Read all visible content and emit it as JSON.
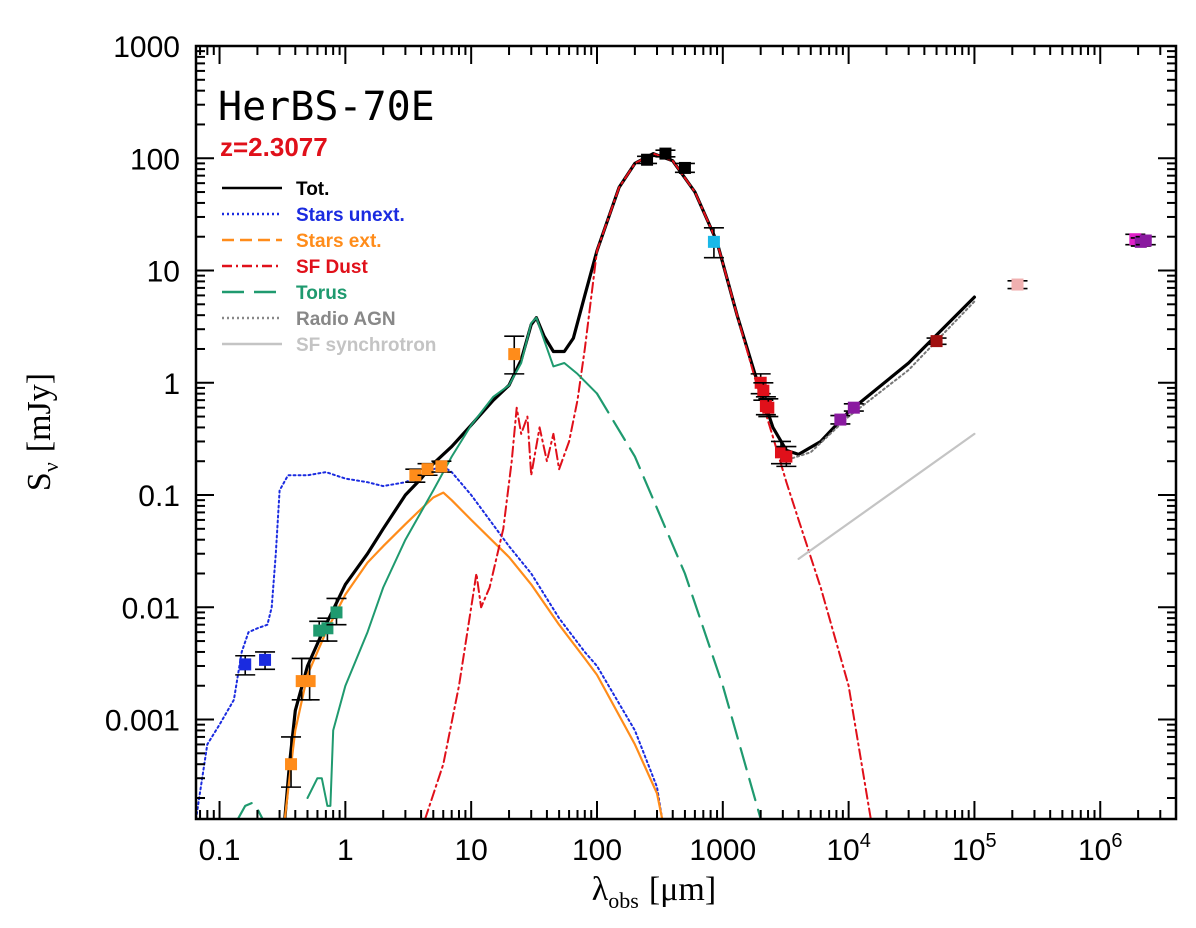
{
  "chart_data": {
    "type": "line",
    "title": "HerBS-70E",
    "subtitle": "z=2.3077",
    "xlabel": "λ",
    "xlabel_sub": "obs",
    "xlabel_unit": "[μm]",
    "ylabel": "S",
    "ylabel_sub": "ν",
    "ylabel_unit": "[mJy]",
    "xscale": "log",
    "yscale": "log",
    "xlim": [
      0.065,
      4000000
    ],
    "ylim": [
      0.00013,
      1000
    ],
    "x_ticks": [
      {
        "v": 0.1,
        "label": "0.1"
      },
      {
        "v": 1,
        "label": "1"
      },
      {
        "v": 10,
        "label": "10"
      },
      {
        "v": 100,
        "label": "100"
      },
      {
        "v": 1000,
        "label": "1000"
      },
      {
        "v": 10000,
        "label": "10",
        "sup": "4"
      },
      {
        "v": 100000,
        "label": "10",
        "sup": "5"
      },
      {
        "v": 1000000,
        "label": "10",
        "sup": "6"
      }
    ],
    "y_ticks": [
      {
        "v": 0.001,
        "label": "0.001"
      },
      {
        "v": 0.01,
        "label": "0.01"
      },
      {
        "v": 0.1,
        "label": "0.1"
      },
      {
        "v": 1,
        "label": "1"
      },
      {
        "v": 10,
        "label": "10"
      },
      {
        "v": 100,
        "label": "100"
      },
      {
        "v": 1000,
        "label": "1000"
      }
    ],
    "legend_position": "top-left",
    "series": [
      {
        "name": "Tot.",
        "color": "#000000",
        "dash": "",
        "width": 3.2,
        "points": [
          [
            0.33,
            0.00013
          ],
          [
            0.36,
            0.0004
          ],
          [
            0.4,
            0.0012
          ],
          [
            0.5,
            0.003
          ],
          [
            0.7,
            0.007
          ],
          [
            1,
            0.016
          ],
          [
            1.5,
            0.03
          ],
          [
            2,
            0.05
          ],
          [
            3,
            0.1
          ],
          [
            4,
            0.14
          ],
          [
            5,
            0.19
          ],
          [
            7,
            0.27
          ],
          [
            10,
            0.42
          ],
          [
            15,
            0.7
          ],
          [
            20,
            0.95
          ],
          [
            25,
            1.6
          ],
          [
            30,
            3.3
          ],
          [
            33,
            3.8
          ],
          [
            38,
            2.6
          ],
          [
            45,
            1.9
          ],
          [
            55,
            1.9
          ],
          [
            65,
            2.5
          ],
          [
            80,
            6
          ],
          [
            100,
            15
          ],
          [
            150,
            55
          ],
          [
            200,
            90
          ],
          [
            280,
            110
          ],
          [
            400,
            95
          ],
          [
            600,
            50
          ],
          [
            900,
            18
          ],
          [
            1300,
            4
          ],
          [
            1800,
            1.2
          ],
          [
            2500,
            0.4
          ],
          [
            3200,
            0.25
          ],
          [
            4000,
            0.23
          ],
          [
            6000,
            0.3
          ],
          [
            10000,
            0.55
          ],
          [
            30000,
            1.5
          ],
          [
            100000,
            5.8
          ]
        ]
      },
      {
        "name": "Stars unext.",
        "color": "#1a2be0",
        "dash": "2,3",
        "width": 2,
        "points": [
          [
            0.065,
            0.00013
          ],
          [
            0.08,
            0.0006
          ],
          [
            0.1,
            0.0009
          ],
          [
            0.13,
            0.0015
          ],
          [
            0.15,
            0.004
          ],
          [
            0.17,
            0.006
          ],
          [
            0.2,
            0.0065
          ],
          [
            0.24,
            0.007
          ],
          [
            0.26,
            0.01
          ],
          [
            0.28,
            0.03
          ],
          [
            0.3,
            0.11
          ],
          [
            0.35,
            0.15
          ],
          [
            0.5,
            0.15
          ],
          [
            0.7,
            0.16
          ],
          [
            1,
            0.14
          ],
          [
            1.5,
            0.13
          ],
          [
            2,
            0.12
          ],
          [
            3,
            0.13
          ],
          [
            4,
            0.15
          ],
          [
            5,
            0.17
          ],
          [
            6,
            0.18
          ],
          [
            7,
            0.16
          ],
          [
            10,
            0.1
          ],
          [
            20,
            0.035
          ],
          [
            30,
            0.02
          ],
          [
            50,
            0.008
          ],
          [
            80,
            0.004
          ],
          [
            100,
            0.003
          ],
          [
            200,
            0.0008
          ],
          [
            300,
            0.00025
          ],
          [
            330,
            0.00013
          ]
        ]
      },
      {
        "name": "Stars ext.",
        "color": "#ff8c1a",
        "dash": "",
        "width": 2.2,
        "points": [
          [
            0.33,
            0.00013
          ],
          [
            0.36,
            0.0003
          ],
          [
            0.4,
            0.0008
          ],
          [
            0.5,
            0.0025
          ],
          [
            0.7,
            0.006
          ],
          [
            1,
            0.013
          ],
          [
            1.5,
            0.025
          ],
          [
            2,
            0.035
          ],
          [
            3,
            0.055
          ],
          [
            4,
            0.075
          ],
          [
            5,
            0.095
          ],
          [
            6,
            0.105
          ],
          [
            7,
            0.09
          ],
          [
            10,
            0.06
          ],
          [
            20,
            0.028
          ],
          [
            30,
            0.016
          ],
          [
            50,
            0.007
          ],
          [
            80,
            0.0035
          ],
          [
            100,
            0.0025
          ],
          [
            200,
            0.0006
          ],
          [
            300,
            0.00022
          ],
          [
            330,
            0.00013
          ]
        ]
      },
      {
        "name": "SF Dust",
        "color": "#e0101a",
        "dash": "10,4,2,4",
        "width": 2,
        "points": [
          [
            4.3,
            0.00013
          ],
          [
            6,
            0.0004
          ],
          [
            8,
            0.002
          ],
          [
            10,
            0.01
          ],
          [
            11,
            0.02
          ],
          [
            12,
            0.01
          ],
          [
            14,
            0.015
          ],
          [
            18,
            0.05
          ],
          [
            21,
            0.2
          ],
          [
            23,
            0.6
          ],
          [
            25,
            0.35
          ],
          [
            28,
            0.5
          ],
          [
            30,
            0.15
          ],
          [
            35,
            0.4
          ],
          [
            40,
            0.2
          ],
          [
            45,
            0.35
          ],
          [
            50,
            0.17
          ],
          [
            60,
            0.3
          ],
          [
            70,
            0.7
          ],
          [
            80,
            2
          ],
          [
            100,
            15
          ],
          [
            150,
            55
          ],
          [
            200,
            90
          ],
          [
            280,
            110
          ],
          [
            400,
            95
          ],
          [
            600,
            50
          ],
          [
            900,
            18
          ],
          [
            1300,
            4
          ],
          [
            1800,
            1.1
          ],
          [
            2500,
            0.33
          ],
          [
            3200,
            0.13
          ],
          [
            4000,
            0.06
          ],
          [
            6000,
            0.015
          ],
          [
            10000,
            0.002
          ],
          [
            15000,
            0.00013
          ]
        ]
      },
      {
        "name": "Torus",
        "color": "#1f9a6f",
        "dash": "22,10",
        "width": 2.2,
        "points": [
          [
            0.14,
            0.00013
          ],
          [
            0.16,
            0.00017
          ],
          [
            0.18,
            0.00018
          ],
          [
            0.2,
            0.00016
          ],
          [
            0.22,
            0.00013
          ]
        ]
      },
      {
        "name": "Torus",
        "color": "#1f9a6f",
        "dash": "",
        "width": 2,
        "points": [
          [
            0.5,
            0.0002
          ],
          [
            0.6,
            0.0003
          ],
          [
            0.65,
            0.0003
          ],
          [
            0.72,
            0.00017
          ],
          [
            0.76,
            0.00017
          ],
          [
            0.8,
            0.0008
          ],
          [
            1,
            0.002
          ],
          [
            1.5,
            0.006
          ],
          [
            2,
            0.015
          ],
          [
            3,
            0.04
          ],
          [
            5,
            0.11
          ],
          [
            7,
            0.22
          ],
          [
            10,
            0.42
          ],
          [
            15,
            0.75
          ],
          [
            20,
            0.95
          ],
          [
            25,
            1.5
          ],
          [
            30,
            3.4
          ],
          [
            33,
            3.8
          ],
          [
            38,
            2.4
          ],
          [
            45,
            1.4
          ],
          [
            55,
            1.5
          ],
          [
            70,
            1.2
          ],
          [
            100,
            0.8
          ]
        ]
      },
      {
        "name": "Torus",
        "color": "#1f9a6f",
        "dash": "22,10",
        "width": 2.2,
        "points": [
          [
            100,
            0.8
          ],
          [
            200,
            0.22
          ],
          [
            500,
            0.02
          ],
          [
            1000,
            0.002
          ],
          [
            2000,
            0.00013
          ]
        ]
      },
      {
        "name": "Radio AGN",
        "color": "#777777",
        "dash": "2,3",
        "width": 2,
        "points": [
          [
            3000,
            0.2
          ],
          [
            5000,
            0.24
          ],
          [
            10000,
            0.5
          ],
          [
            30000,
            1.3
          ],
          [
            100000,
            5.3
          ]
        ]
      },
      {
        "name": "SF synchrotron",
        "color": "#c4c4c4",
        "dash": "",
        "width": 2.2,
        "points": [
          [
            4000,
            0.027
          ],
          [
            100000,
            0.35
          ]
        ]
      }
    ],
    "points": [
      {
        "x": 0.16,
        "y": 0.0031,
        "color": "#1a2be0",
        "err_lo": 0.0025,
        "err_hi": 0.0037
      },
      {
        "x": 0.23,
        "y": 0.0034,
        "color": "#1a2be0",
        "err_lo": 0.0028,
        "err_hi": 0.004
      },
      {
        "x": 0.37,
        "y": 0.0004,
        "color": "#ff8c1a",
        "err_lo": 0.00025,
        "err_hi": 0.0007
      },
      {
        "x": 0.45,
        "y": 0.0022,
        "color": "#ff8c1a",
        "err_lo": 0.0015,
        "err_hi": 0.0035
      },
      {
        "x": 0.52,
        "y": 0.0022,
        "color": "#ff8c1a",
        "err_lo": 0.0015,
        "err_hi": 0.0035
      },
      {
        "x": 0.62,
        "y": 0.0062,
        "color": "#1f9a6f",
        "err_lo": 0.005,
        "err_hi": 0.0075
      },
      {
        "x": 0.72,
        "y": 0.0065,
        "color": "#1f9a6f",
        "err_lo": 0.005,
        "err_hi": 0.008
      },
      {
        "x": 0.85,
        "y": 0.009,
        "color": "#1f9a6f",
        "err_lo": 0.007,
        "err_hi": 0.012
      },
      {
        "x": 3.6,
        "y": 0.15,
        "color": "#ff8c1a",
        "err_lo": 0.13,
        "err_hi": 0.17
      },
      {
        "x": 4.5,
        "y": 0.17,
        "color": "#ff8c1a",
        "err_lo": 0.15,
        "err_hi": 0.19
      },
      {
        "x": 5.8,
        "y": 0.18,
        "color": "#ff8c1a",
        "err_lo": 0.16,
        "err_hi": 0.2
      },
      {
        "x": 22,
        "y": 1.8,
        "color": "#ff8c1a",
        "err_lo": 1.2,
        "err_hi": 2.6
      },
      {
        "x": 250,
        "y": 97,
        "color": "#000000",
        "err_lo": 90,
        "err_hi": 104
      },
      {
        "x": 350,
        "y": 110,
        "color": "#000000",
        "err_lo": 103,
        "err_hi": 118
      },
      {
        "x": 500,
        "y": 82,
        "color": "#000000",
        "err_lo": 75,
        "err_hi": 90
      },
      {
        "x": 850,
        "y": 18,
        "color": "#1ab8e8",
        "err_lo": 13,
        "err_hi": 24
      },
      {
        "x": 2000,
        "y": 1.0,
        "color": "#e0101a",
        "err_lo": 0.8,
        "err_hi": 1.2
      },
      {
        "x": 2100,
        "y": 0.85,
        "color": "#e0101a",
        "err_lo": 0.7,
        "err_hi": 1.0
      },
      {
        "x": 2200,
        "y": 0.62,
        "color": "#e0101a",
        "err_lo": 0.52,
        "err_hi": 0.75
      },
      {
        "x": 2300,
        "y": 0.6,
        "color": "#e0101a",
        "err_lo": 0.5,
        "err_hi": 0.72
      },
      {
        "x": 2900,
        "y": 0.24,
        "color": "#e0101a",
        "err_lo": 0.19,
        "err_hi": 0.3
      },
      {
        "x": 3200,
        "y": 0.22,
        "color": "#e0101a",
        "err_lo": 0.18,
        "err_hi": 0.27
      },
      {
        "x": 8600,
        "y": 0.47,
        "color": "#8a1aa0",
        "err_lo": 0.43,
        "err_hi": 0.51
      },
      {
        "x": 11000,
        "y": 0.6,
        "color": "#8a1aa0",
        "err_lo": 0.56,
        "err_hi": 0.65
      },
      {
        "x": 50000,
        "y": 2.35,
        "color": "#a01010",
        "err_lo": 2.2,
        "err_hi": 2.5
      },
      {
        "x": 220000,
        "y": 7.5,
        "color": "#f0b0b0",
        "err_lo": 6.9,
        "err_hi": 8.1
      },
      {
        "x": 1900000,
        "y": 19,
        "color": "#e020c8",
        "err_lo": 17,
        "err_hi": 21
      },
      {
        "x": 2100000,
        "y": 18,
        "color": "#8a1aa0",
        "err_lo": 16.5,
        "err_hi": 19.5
      },
      {
        "x": 2300000,
        "y": 18.5,
        "color": "#8a1aa0",
        "err_lo": 17,
        "err_hi": 20
      }
    ],
    "legend": [
      {
        "label": "Tot.",
        "color": "#000000",
        "dash": ""
      },
      {
        "label": "Stars unext.",
        "color": "#1a2be0",
        "dash": "2,3"
      },
      {
        "label": "Stars ext.",
        "color": "#ff8c1a",
        "dash": "12,6"
      },
      {
        "label": "SF Dust",
        "color": "#e0101a",
        "dash": "10,4,2,4"
      },
      {
        "label": "Torus",
        "color": "#1f9a6f",
        "dash": "22,10"
      },
      {
        "label": "Radio AGN",
        "color": "#888888",
        "dash": "2,3"
      },
      {
        "label": "SF synchrotron",
        "color": "#c4c4c4",
        "dash": ""
      }
    ]
  }
}
